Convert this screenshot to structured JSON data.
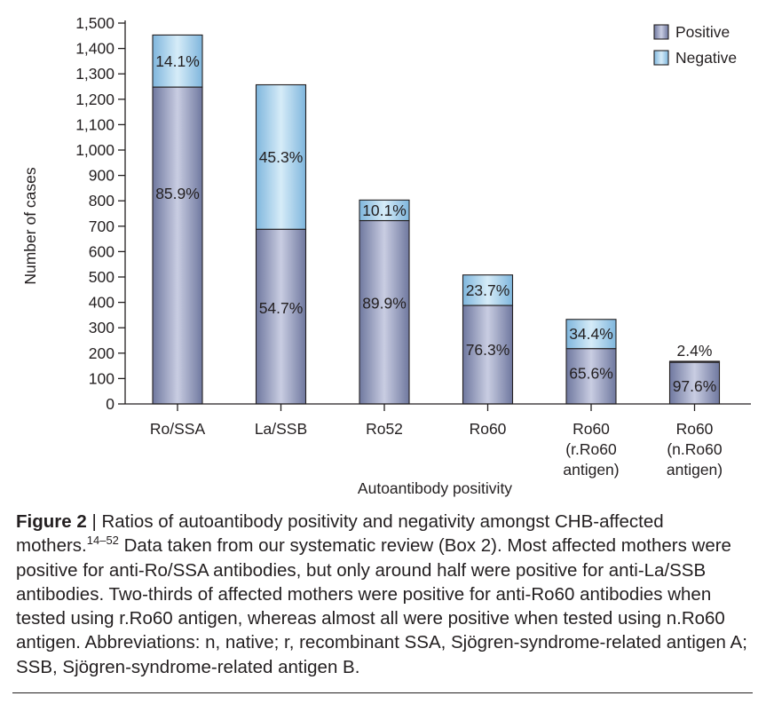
{
  "chart_data": {
    "type": "bar",
    "stacked": true,
    "categories": [
      [
        "Ro/SSA"
      ],
      [
        "La/SSB"
      ],
      [
        "Ro52"
      ],
      [
        "Ro60"
      ],
      [
        "Ro60",
        "(r.Ro60",
        "antigen)"
      ],
      [
        "Ro60",
        "(n.Ro60",
        "antigen)"
      ]
    ],
    "totals": [
      1453,
      1257,
      803,
      508,
      333,
      168
    ],
    "series": [
      {
        "name": "Positive",
        "color": "#8f97bc",
        "values": [
          1248,
          688,
          722,
          388,
          218,
          164
        ],
        "labels": [
          "85.9%",
          "54.7%",
          "89.9%",
          "76.3%",
          "65.6%",
          "97.6%"
        ]
      },
      {
        "name": "Negative",
        "color": "#9fcbe8",
        "values": [
          205,
          569,
          81,
          120,
          115,
          4
        ],
        "labels": [
          "14.1%",
          "45.3%",
          "10.1%",
          "23.7%",
          "34.4%",
          "2.4%"
        ]
      }
    ],
    "xlabel": "Autoantibody positivity",
    "ylabel": "Number of cases",
    "ylim": [
      0,
      1500
    ],
    "yticks": [
      0,
      100,
      200,
      300,
      400,
      500,
      600,
      700,
      800,
      900,
      1000,
      1100,
      1200,
      1300,
      1400,
      1500
    ],
    "ytick_labels": [
      "0",
      "100",
      "200",
      "300",
      "400",
      "500",
      "600",
      "700",
      "800",
      "900",
      "1,000",
      "1,100",
      "1,200",
      "1,300",
      "1,400",
      "1,500"
    ],
    "legend_position": "top-right",
    "grid": false
  },
  "caption": {
    "label": "Figure 2",
    "separator": " | ",
    "text_a": "Ratios of autoantibody positivity and negativity amongst CHB-affected mothers.",
    "refs": "14–52",
    "text_b": " Data taken from our systematic review (Box 2). Most affected mothers were positive for anti-Ro/SSA antibodies, but only around half were positive for anti-La/SSB antibodies. Two-thirds of affected mothers were positive for anti-Ro60 antibodies when tested using r.Ro60 antigen, whereas almost all were positive when tested using n.Ro60 antigen. Abbreviations: n, native; r, recombinant SSA, Sjögren-syndrome-related antigen A; SSB, Sjögren-syndrome-related antigen B."
  }
}
